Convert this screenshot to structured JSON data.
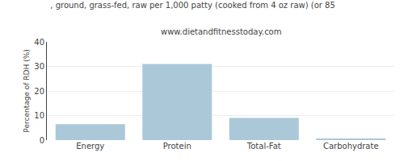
{
  "chart_data": {
    "type": "bar",
    "title": ", ground, grass-fed, raw per 1,000 patty (cooked from 4 oz raw) (or 85",
    "subtitle": "www.dietandfitnesstoday.com",
    "categories": [
      "Energy",
      "Protein",
      "Total-Fat",
      "Carbohydrate"
    ],
    "values": [
      6.5,
      31.0,
      9.0,
      0.5
    ],
    "color": "#aac8d8",
    "ylabel": "Percentage of RDH (%)",
    "ylim": [
      0,
      40
    ],
    "yticks": [
      0,
      10,
      20,
      30,
      40
    ],
    "grid": true
  }
}
